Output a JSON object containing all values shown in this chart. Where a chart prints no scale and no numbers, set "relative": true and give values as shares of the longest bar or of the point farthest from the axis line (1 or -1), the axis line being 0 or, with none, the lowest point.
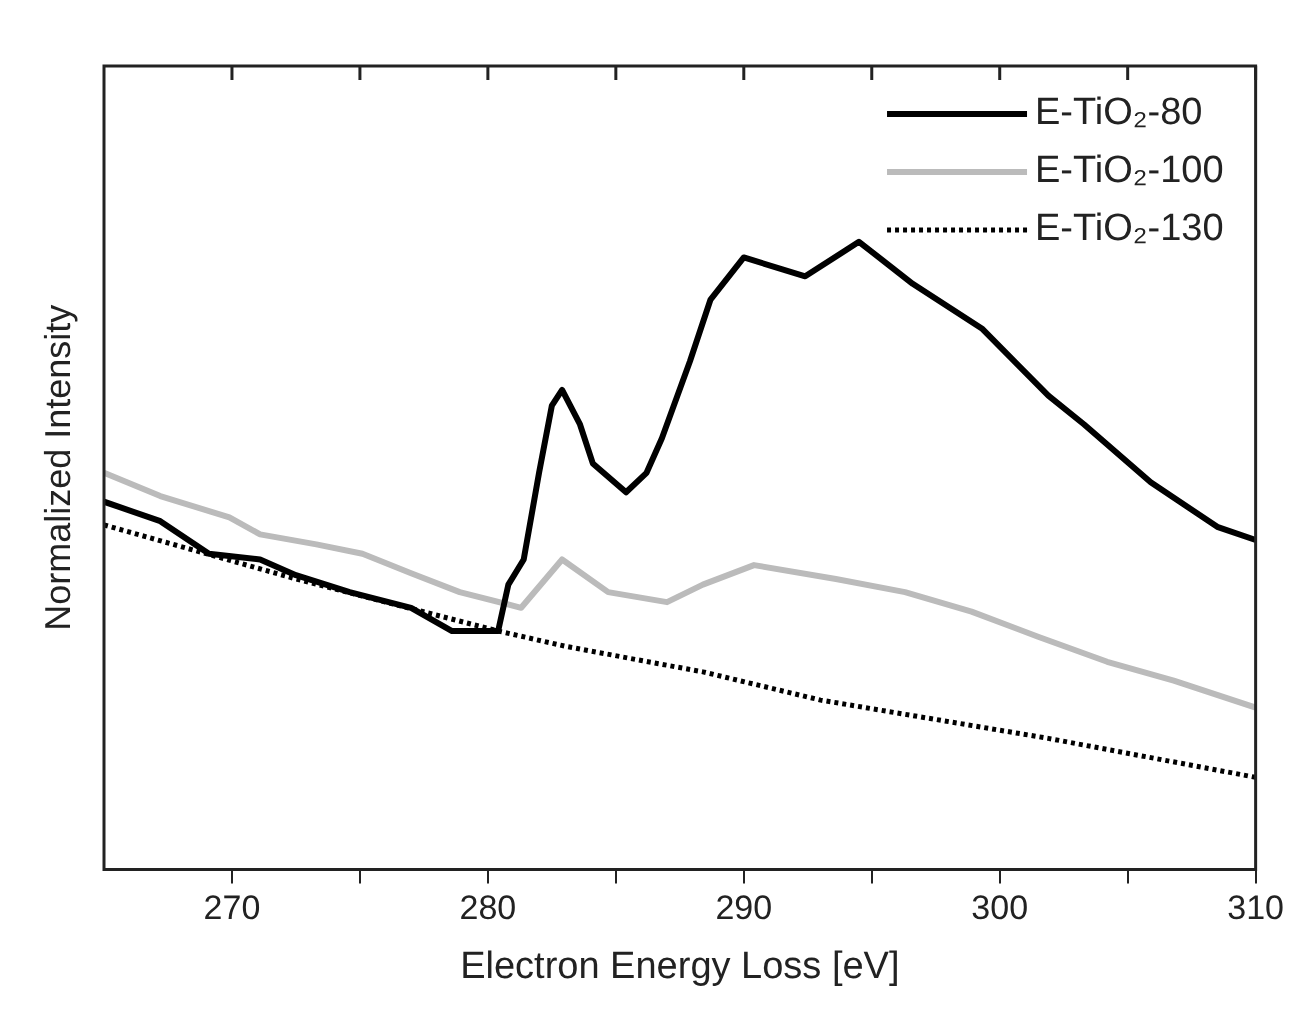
{
  "chart_data": {
    "type": "line",
    "xlabel": "Electron Energy Loss [eV]",
    "ylabel": "Normalized Intensity",
    "relative": true,
    "xlim": [
      265,
      310
    ],
    "xticks": [
      270,
      {
        "value": 275,
        "label": null
      },
      280,
      {
        "value": 285,
        "label": null
      },
      290,
      {
        "value": 295,
        "label": null
      },
      300,
      {
        "value": 305,
        "label": null
      },
      310
    ],
    "grid": false,
    "legend": "top right",
    "marker": "none",
    "series": [
      {
        "name": "E-TiO₂-80",
        "color": "#000000",
        "line_style": "solid",
        "x": [
          265,
          267.2,
          269.1,
          271.1,
          272.5,
          274.6,
          277,
          278.6,
          280.4,
          280.8,
          281.4,
          282,
          282.5,
          282.9,
          283.6,
          284.1,
          285.4,
          286.2,
          286.8,
          287.9,
          288.7,
          290,
          292.4,
          294.5,
          296.6,
          299.3,
          301.9,
          303.3,
          305.9,
          308.5,
          310
        ],
        "values": [
          0.586,
          0.555,
          0.503,
          0.494,
          0.469,
          0.442,
          0.417,
          0.38,
          0.38,
          0.454,
          0.494,
          0.632,
          0.739,
          0.764,
          0.709,
          0.647,
          0.601,
          0.632,
          0.687,
          0.81,
          0.908,
          0.975,
          0.945,
          1,
          0.933,
          0.862,
          0.755,
          0.709,
          0.617,
          0.546,
          0.525
        ]
      },
      {
        "name": "E-TiO₂-100",
        "color": "#bbbbbb",
        "line_style": "solid",
        "x": [
          265,
          267.2,
          269.9,
          271.1,
          273.3,
          275.1,
          277,
          278.9,
          281.3,
          282.9,
          284.7,
          287,
          288.4,
          290.4,
          293.6,
          296.3,
          298.9,
          301.5,
          304.2,
          306.8,
          310
        ],
        "values": [
          0.632,
          0.595,
          0.561,
          0.534,
          0.518,
          0.503,
          0.472,
          0.442,
          0.417,
          0.494,
          0.442,
          0.426,
          0.454,
          0.485,
          0.463,
          0.442,
          0.411,
          0.371,
          0.331,
          0.301,
          0.258
        ]
      },
      {
        "name": "E-TiO₂-130",
        "color": "#000000",
        "line_style": "dotted",
        "x": [
          265,
          272.5,
          280.4,
          283,
          286,
          288.4,
          293,
          301.9,
          310
        ],
        "values": [
          0.549,
          0.463,
          0.38,
          0.356,
          0.333,
          0.315,
          0.27,
          0.209,
          0.147
        ]
      }
    ]
  }
}
